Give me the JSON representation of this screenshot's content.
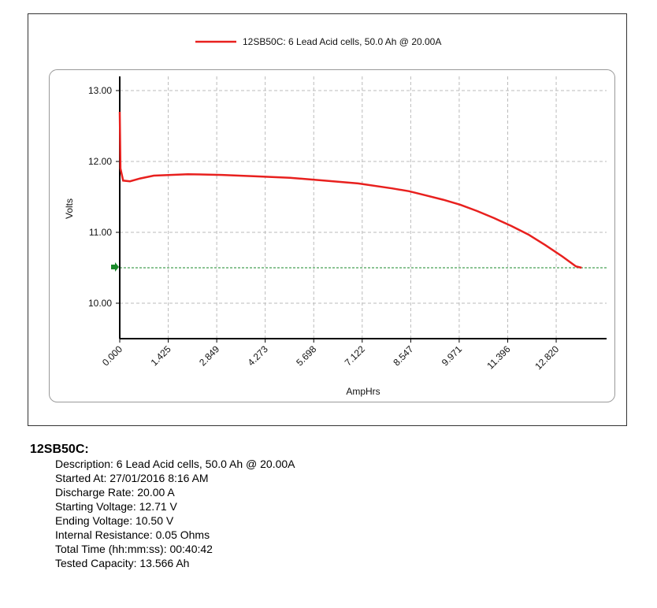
{
  "chart_data": {
    "type": "line",
    "x": [
      0,
      0.02,
      0.1,
      0.3,
      0.6,
      1.0,
      1.5,
      2.0,
      3.0,
      4.0,
      5.0,
      6.0,
      7.0,
      8.0,
      8.5,
      9.0,
      9.5,
      10.0,
      10.5,
      11.0,
      11.5,
      12.0,
      12.5,
      13.0,
      13.4,
      13.566
    ],
    "series": [
      {
        "name": "12SB50C: 6 Lead Acid cells, 50.0 Ah @ 20.00A",
        "color": "#e8201e",
        "values": [
          12.7,
          11.9,
          11.73,
          11.72,
          11.76,
          11.8,
          11.81,
          11.82,
          11.81,
          11.79,
          11.77,
          11.73,
          11.69,
          11.62,
          11.58,
          11.52,
          11.46,
          11.39,
          11.3,
          11.2,
          11.09,
          10.97,
          10.82,
          10.66,
          10.52,
          10.5
        ]
      }
    ],
    "reference_line": {
      "value": 10.5,
      "color": "#1a8a2a"
    },
    "xlabel": "AmpHrs",
    "ylabel": "Volts",
    "xlim": [
      0,
      14.3
    ],
    "ylim": [
      9.5,
      13.2
    ],
    "xticks": [
      {
        "value": 0,
        "label": "0.000"
      },
      1.425,
      2.849,
      4.273,
      5.698,
      7.122,
      8.547,
      9.971,
      11.396,
      {
        "value": 12.82,
        "label": "12.820"
      }
    ],
    "yticks": [
      {
        "value": 10,
        "label": "10.00"
      },
      {
        "value": 11,
        "label": "11.00"
      },
      {
        "value": 12,
        "label": "12.00"
      },
      {
        "value": 13,
        "label": "13.00"
      }
    ],
    "grid": true
  },
  "report": {
    "title": "12SB50C:",
    "lines": [
      "Description: 6 Lead Acid cells, 50.0 Ah @ 20.00A",
      "Started At: 27/01/2016 8:16 AM",
      "Discharge Rate: 20.00 A",
      "Starting Voltage: 12.71 V",
      "Ending Voltage: 10.50 V",
      "Internal Resistance: 0.05 Ohms",
      "Total Time (hh:mm:ss): 00:40:42",
      "Tested Capacity: 13.566 Ah"
    ]
  }
}
